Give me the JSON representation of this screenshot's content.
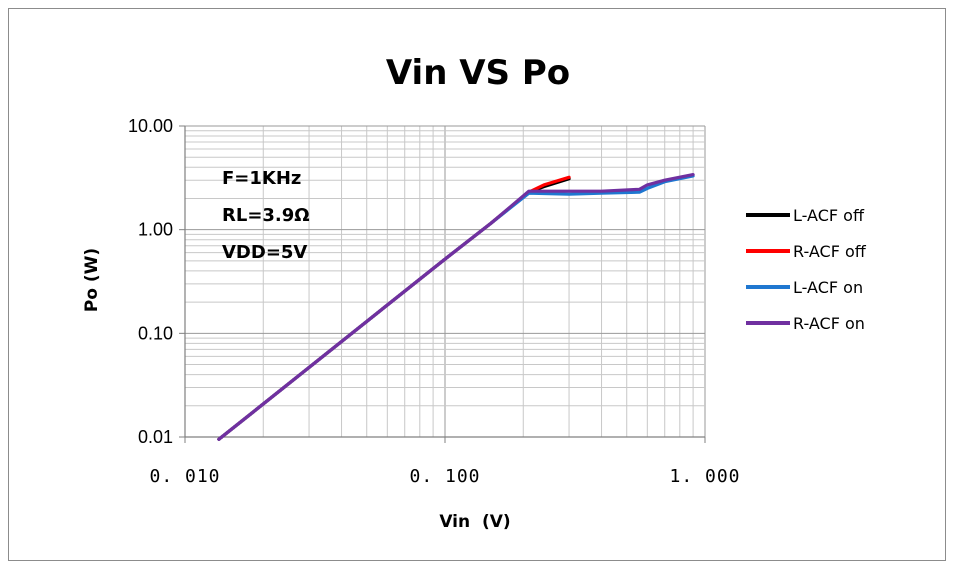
{
  "chart_data": {
    "type": "line",
    "title": "Vin VS Po",
    "xlabel": "Vin  (V)",
    "ylabel": "Po (W)",
    "x_scale": "log",
    "y_scale": "log",
    "xlim": [
      0.01,
      1.0
    ],
    "ylim": [
      0.01,
      10.0
    ],
    "x_ticks": [
      "0.010",
      "0.100",
      "1.000"
    ],
    "y_ticks": [
      "0.01",
      "0.10",
      "1.00",
      "10.00"
    ],
    "grid": true,
    "legend_position": "right",
    "annotations": [
      "F=1KHz",
      "RL=3.9Ω",
      "VDD=5V"
    ],
    "series": [
      {
        "name": "L-ACF off",
        "color": "#000000",
        "points": [
          [
            0.0135,
            0.0095
          ],
          [
            0.05,
            0.13
          ],
          [
            0.1,
            0.52
          ],
          [
            0.15,
            1.15
          ],
          [
            0.21,
            2.3
          ],
          [
            0.24,
            2.6
          ],
          [
            0.3,
            3.1
          ]
        ]
      },
      {
        "name": "R-ACF off",
        "color": "#ff0000",
        "points": [
          [
            0.0135,
            0.0095
          ],
          [
            0.05,
            0.13
          ],
          [
            0.1,
            0.52
          ],
          [
            0.15,
            1.15
          ],
          [
            0.21,
            2.3
          ],
          [
            0.24,
            2.7
          ],
          [
            0.3,
            3.2
          ]
        ]
      },
      {
        "name": "L-ACF on",
        "color": "#1f77d0",
        "points": [
          [
            0.0135,
            0.0095
          ],
          [
            0.05,
            0.13
          ],
          [
            0.1,
            0.52
          ],
          [
            0.15,
            1.15
          ],
          [
            0.21,
            2.25
          ],
          [
            0.3,
            2.2
          ],
          [
            0.4,
            2.25
          ],
          [
            0.56,
            2.3
          ],
          [
            0.6,
            2.5
          ],
          [
            0.7,
            2.9
          ],
          [
            0.9,
            3.3
          ]
        ]
      },
      {
        "name": "R-ACF on",
        "color": "#7030a0",
        "points": [
          [
            0.0135,
            0.0095
          ],
          [
            0.05,
            0.13
          ],
          [
            0.1,
            0.52
          ],
          [
            0.15,
            1.15
          ],
          [
            0.21,
            2.35
          ],
          [
            0.3,
            2.35
          ],
          [
            0.4,
            2.35
          ],
          [
            0.56,
            2.45
          ],
          [
            0.6,
            2.7
          ],
          [
            0.7,
            3.0
          ],
          [
            0.9,
            3.4
          ]
        ]
      }
    ]
  }
}
